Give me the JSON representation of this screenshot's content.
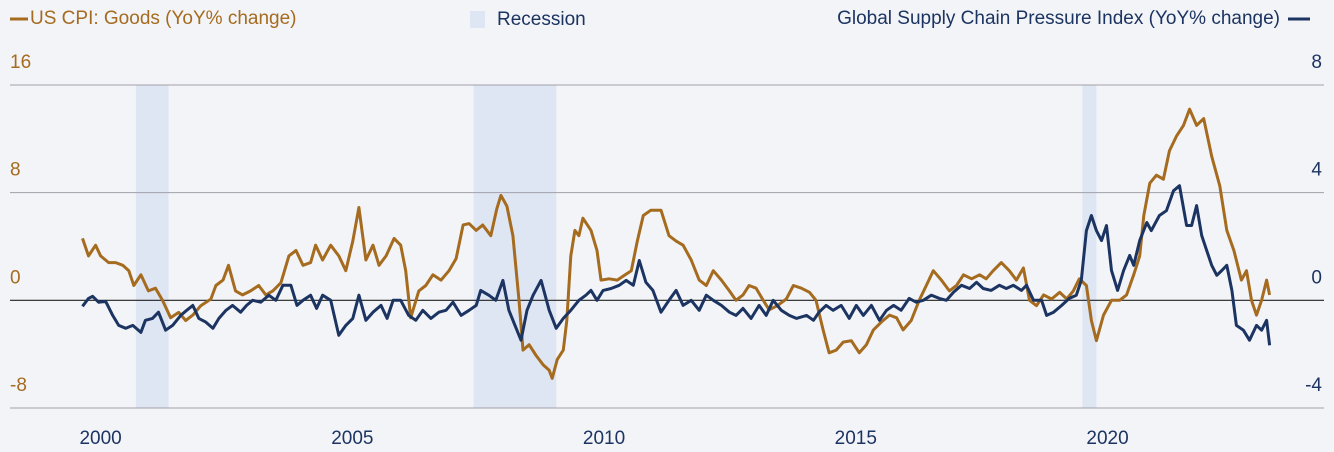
{
  "chart_data": {
    "type": "line",
    "xlim": [
      1998.2,
      2024.3
    ],
    "xticks": [
      2000,
      2005,
      2010,
      2015,
      2020
    ],
    "ylim": [
      -8,
      16
    ],
    "yticks": [
      -8,
      0,
      8,
      16
    ],
    "y2lim": [
      -4,
      8
    ],
    "y2ticks": [
      -4,
      0,
      4,
      8
    ],
    "grid": true,
    "recessions": {
      "name": "Recession",
      "color": "#dfe6f3",
      "spans": [
        [
          2000.7,
          2001.35
        ],
        [
          2007.41,
          2009.05
        ],
        [
          2019.5,
          2019.78
        ]
      ]
    },
    "series": [
      {
        "name": "US CPI: Goods (YoY% change)",
        "color": "#a56b1f",
        "axis": "y",
        "x": [
          1999.64,
          1999.76,
          1999.9,
          2000.0,
          2000.16,
          2000.3,
          2000.44,
          2000.56,
          2000.66,
          2000.8,
          2000.95,
          2001.09,
          2001.23,
          2001.39,
          2001.55,
          2001.69,
          2001.83,
          2001.99,
          2002.19,
          2002.29,
          2002.43,
          2002.54,
          2002.68,
          2002.82,
          2002.98,
          2003.14,
          2003.28,
          2003.42,
          2003.58,
          2003.74,
          2003.88,
          2004.02,
          2004.17,
          2004.27,
          2004.41,
          2004.57,
          2004.73,
          2004.87,
          2005.01,
          2005.13,
          2005.27,
          2005.41,
          2005.53,
          2005.67,
          2005.83,
          2005.96,
          2006.06,
          2006.16,
          2006.32,
          2006.46,
          2006.6,
          2006.76,
          2006.92,
          2007.06,
          2007.2,
          2007.32,
          2007.46,
          2007.59,
          2007.75,
          2007.87,
          2007.95,
          2008.07,
          2008.19,
          2008.31,
          2008.39,
          2008.51,
          2008.65,
          2008.79,
          2008.91,
          2008.97,
          2009.07,
          2009.19,
          2009.26,
          2009.34,
          2009.42,
          2009.5,
          2009.58,
          2009.74,
          2009.86,
          2009.94,
          2010.1,
          2010.26,
          2010.42,
          2010.54,
          2010.66,
          2010.78,
          2010.93,
          2011.13,
          2011.29,
          2011.43,
          2011.57,
          2011.73,
          2011.89,
          2012.03,
          2012.17,
          2012.33,
          2012.49,
          2012.62,
          2012.76,
          2012.88,
          2013.02,
          2013.16,
          2013.28,
          2013.44,
          2013.62,
          2013.76,
          2013.92,
          2014.08,
          2014.21,
          2014.35,
          2014.47,
          2014.61,
          2014.75,
          2014.91,
          2015.07,
          2015.21,
          2015.35,
          2015.51,
          2015.67,
          2015.81,
          2015.94,
          2016.1,
          2016.26,
          2016.4,
          2016.54,
          2016.7,
          2016.86,
          2017.0,
          2017.14,
          2017.3,
          2017.46,
          2017.59,
          2017.73,
          2017.89,
          2018.05,
          2018.19,
          2018.33,
          2018.45,
          2018.59,
          2018.73,
          2018.89,
          2019.05,
          2019.19,
          2019.32,
          2019.44,
          2019.58,
          2019.68,
          2019.78,
          2019.92,
          2020.08,
          2020.24,
          2020.38,
          2020.52,
          2020.64,
          2020.72,
          2020.84,
          2020.97,
          2021.11,
          2021.23,
          2021.37,
          2021.51,
          2021.63,
          2021.77,
          2021.91,
          2022.07,
          2022.23,
          2022.37,
          2022.51,
          2022.66,
          2022.76,
          2022.86,
          2022.96,
          2023.06,
          2023.16,
          2023.22
        ],
        "values": [
          4.6,
          3.3,
          4.1,
          3.3,
          2.8,
          2.8,
          2.6,
          2.2,
          1.1,
          1.9,
          0.7,
          0.9,
          0,
          -1.3,
          -0.9,
          -1.5,
          -1.1,
          -0.4,
          0.1,
          1.1,
          1.5,
          2.6,
          0.7,
          0.4,
          0.7,
          1.1,
          0.4,
          0.7,
          1.3,
          3.3,
          3.7,
          2.6,
          2.8,
          4.1,
          3.0,
          4.1,
          3.3,
          2.2,
          4.4,
          6.9,
          3.0,
          4.1,
          2.6,
          3.3,
          4.6,
          4.1,
          2.2,
          -1.3,
          0.7,
          1.1,
          1.9,
          1.5,
          2.2,
          3.1,
          5.6,
          5.7,
          5.2,
          5.6,
          4.8,
          6.8,
          7.8,
          7.0,
          4.8,
          0,
          -3.7,
          -3.3,
          -4.1,
          -4.8,
          -5.2,
          -5.8,
          -4.4,
          -3.7,
          -1.5,
          3.3,
          5.2,
          4.8,
          6.1,
          5.2,
          3.7,
          1.5,
          1.6,
          1.5,
          1.9,
          2.2,
          4.4,
          6.3,
          6.7,
          6.7,
          4.8,
          4.4,
          4.1,
          3.0,
          1.5,
          1.1,
          2.2,
          1.5,
          0.7,
          0,
          0.4,
          1.1,
          0.9,
          0,
          -0.7,
          -0.4,
          0.1,
          1.1,
          0.9,
          0.6,
          0,
          -2.2,
          -3.9,
          -3.7,
          -3.1,
          -3.0,
          -3.9,
          -3.3,
          -2.2,
          -1.6,
          -1.1,
          -1.3,
          -2.2,
          -1.5,
          0,
          1.1,
          2.2,
          1.5,
          0.7,
          1.1,
          1.9,
          1.6,
          1.9,
          1.6,
          2.2,
          2.8,
          2.2,
          1.5,
          2.4,
          0,
          -0.4,
          0.4,
          0.1,
          0.6,
          0.1,
          0.7,
          1.6,
          1.1,
          -1.5,
          -3.0,
          -1.1,
          0,
          0,
          0.4,
          1.9,
          3.3,
          6.3,
          8.7,
          9.3,
          9.0,
          11.1,
          12.2,
          13.0,
          14.2,
          13.0,
          13.5,
          10.7,
          8.5,
          5.2,
          3.7,
          1.5,
          2.2,
          0,
          -1.1,
          0,
          1.5,
          0.4
        ]
      },
      {
        "name": "Global Supply Chain Pressure Index (YoY% change)",
        "color": "#1c3461",
        "axis": "y2",
        "x": [
          1999.64,
          1999.76,
          1999.84,
          1999.96,
          2000.1,
          2000.24,
          2000.36,
          2000.5,
          2000.64,
          2000.8,
          2000.89,
          2001.03,
          2001.15,
          2001.29,
          2001.43,
          2001.59,
          2001.71,
          2001.83,
          2001.95,
          2002.09,
          2002.23,
          2002.35,
          2002.49,
          2002.62,
          2002.78,
          2002.9,
          2003.02,
          2003.18,
          2003.34,
          2003.48,
          2003.62,
          2003.78,
          2003.9,
          2004.02,
          2004.17,
          2004.29,
          2004.41,
          2004.57,
          2004.73,
          2004.87,
          2005.01,
          2005.13,
          2005.27,
          2005.41,
          2005.57,
          2005.69,
          2005.81,
          2005.96,
          2006.12,
          2006.26,
          2006.4,
          2006.56,
          2006.72,
          2006.86,
          2007.0,
          2007.16,
          2007.32,
          2007.46,
          2007.55,
          2007.71,
          2007.85,
          2007.99,
          2008.11,
          2008.23,
          2008.35,
          2008.47,
          2008.59,
          2008.75,
          2008.91,
          2009.05,
          2009.19,
          2009.34,
          2009.5,
          2009.64,
          2009.74,
          2009.86,
          2009.98,
          2010.14,
          2010.3,
          2010.44,
          2010.58,
          2010.7,
          2010.83,
          2010.97,
          2011.13,
          2011.29,
          2011.43,
          2011.57,
          2011.73,
          2011.89,
          2012.03,
          2012.17,
          2012.33,
          2012.49,
          2012.62,
          2012.76,
          2012.92,
          2013.08,
          2013.22,
          2013.36,
          2013.52,
          2013.68,
          2013.82,
          2014.02,
          2014.16,
          2014.27,
          2014.41,
          2014.55,
          2014.71,
          2014.87,
          2015.01,
          2015.15,
          2015.31,
          2015.47,
          2015.61,
          2015.75,
          2015.9,
          2016.06,
          2016.2,
          2016.34,
          2016.5,
          2016.66,
          2016.8,
          2016.94,
          2017.1,
          2017.26,
          2017.4,
          2017.53,
          2017.69,
          2017.85,
          2017.99,
          2018.13,
          2018.29,
          2018.39,
          2018.53,
          2018.69,
          2018.79,
          2018.93,
          2019.09,
          2019.24,
          2019.38,
          2019.48,
          2019.58,
          2019.68,
          2019.78,
          2019.88,
          2019.98,
          2020.08,
          2020.2,
          2020.32,
          2020.44,
          2020.52,
          2020.64,
          2020.78,
          2020.87,
          2021.03,
          2021.17,
          2021.31,
          2021.43,
          2021.57,
          2021.67,
          2021.77,
          2021.87,
          2021.97,
          2022.07,
          2022.17,
          2022.27,
          2022.37,
          2022.47,
          2022.56,
          2022.7,
          2022.82,
          2022.96,
          2023.06,
          2023.16,
          2023.22
        ],
        "values": [
          -0.22,
          0.07,
          0.15,
          -0.07,
          -0.04,
          -0.56,
          -0.93,
          -1.04,
          -0.93,
          -1.19,
          -0.74,
          -0.67,
          -0.44,
          -1.11,
          -0.93,
          -0.56,
          -0.37,
          -0.19,
          -0.67,
          -0.81,
          -1.04,
          -0.67,
          -0.37,
          -0.19,
          -0.44,
          -0.19,
          0,
          -0.07,
          0.19,
          0,
          0.56,
          0.56,
          -0.19,
          0,
          0.19,
          -0.3,
          0.19,
          0,
          -1.3,
          -0.93,
          -0.67,
          0.19,
          -0.74,
          -0.44,
          -0.19,
          -0.67,
          0,
          0,
          -0.56,
          -0.74,
          -0.37,
          -0.67,
          -0.44,
          -0.37,
          -0.07,
          -0.56,
          -0.37,
          -0.19,
          0.37,
          0.19,
          0,
          0.74,
          -0.37,
          -0.93,
          -1.48,
          -0.37,
          0.19,
          0.74,
          -0.37,
          -1.04,
          -0.67,
          -0.37,
          0,
          0.19,
          0.37,
          0,
          0.37,
          0.44,
          0.56,
          0.74,
          0.56,
          1.48,
          0.67,
          0.37,
          -0.44,
          0,
          0.37,
          -0.19,
          0,
          -0.37,
          0.19,
          0,
          -0.19,
          -0.44,
          -0.56,
          -0.3,
          -0.67,
          -0.19,
          -0.56,
          0,
          -0.37,
          -0.56,
          -0.67,
          -0.56,
          -0.74,
          -0.44,
          -0.19,
          -0.37,
          -0.19,
          -0.67,
          -0.19,
          -0.56,
          -0.19,
          -0.74,
          -0.37,
          -0.19,
          -0.37,
          0.07,
          -0.07,
          0,
          0.19,
          0.07,
          0,
          0.3,
          0.56,
          0.44,
          0.67,
          0.44,
          0.37,
          0.56,
          0.44,
          0.56,
          0.37,
          0.56,
          0,
          0,
          -0.56,
          -0.44,
          -0.19,
          0.07,
          0.19,
          0.74,
          2.59,
          3.15,
          2.59,
          2.22,
          2.78,
          1.11,
          0.37,
          1.11,
          1.67,
          1.3,
          2.22,
          2.89,
          2.59,
          3.15,
          3.33,
          4.07,
          4.26,
          2.78,
          2.78,
          3.52,
          2.41,
          1.85,
          1.3,
          0.93,
          1.11,
          1.3,
          0.37,
          -0.93,
          -1.11,
          -1.48,
          -0.93,
          -1.11,
          -0.74,
          -1.67
        ]
      }
    ]
  }
}
